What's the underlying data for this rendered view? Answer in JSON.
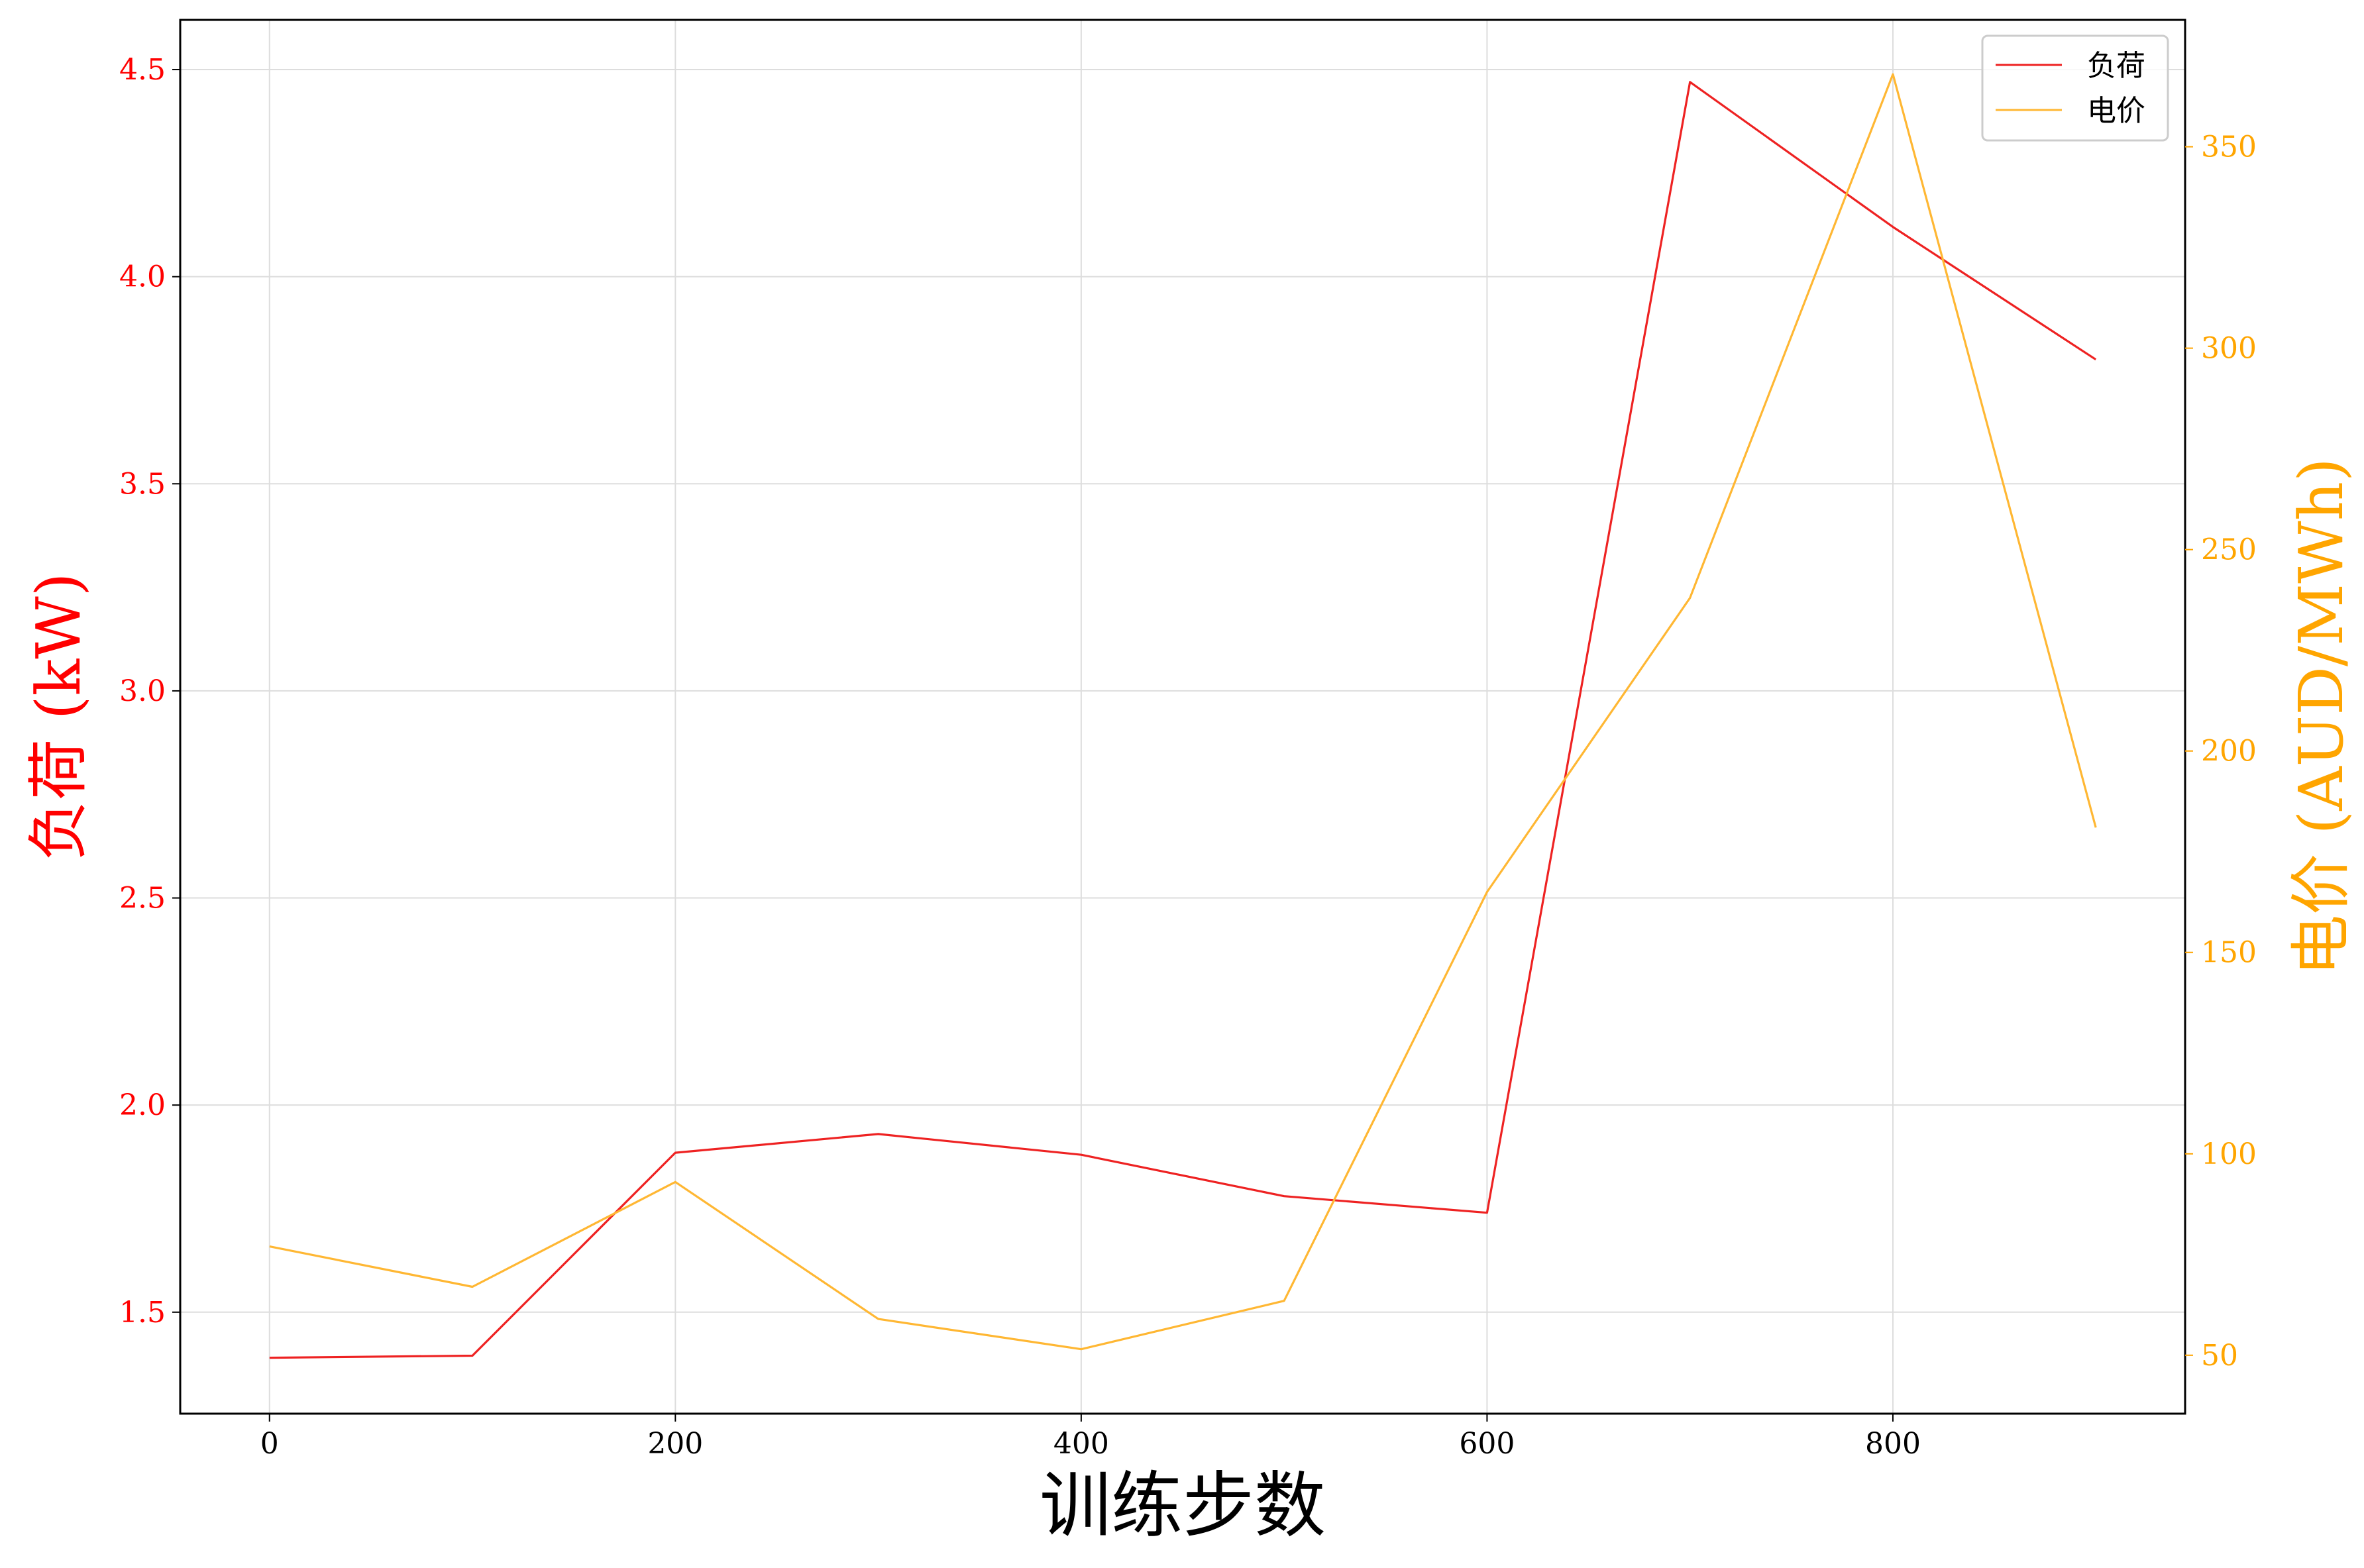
{
  "chart_data": {
    "type": "line",
    "title": "",
    "xlabel": "训练步数",
    "x": [
      0,
      100,
      200,
      300,
      400,
      500,
      600,
      700,
      800,
      900
    ],
    "xlim": [
      -44,
      944
    ],
    "xticks": [
      0,
      200,
      400,
      600,
      800
    ],
    "y_left": {
      "label": "负荷 (kW)",
      "color": "#ff0000",
      "lim": [
        1.255,
        4.62
      ],
      "ticks": [
        "1.5",
        "2.0",
        "2.5",
        "3.0",
        "3.5",
        "4.0",
        "4.5"
      ]
    },
    "y_right": {
      "label": "电价 (AUD/MWh)",
      "color": "#ffa500",
      "lim": [
        35.5,
        381.5
      ],
      "ticks": [
        "50",
        "100",
        "150",
        "200",
        "250",
        "300",
        "350"
      ]
    },
    "series": [
      {
        "name": "负荷",
        "axis": "left",
        "color": "#ee2222",
        "values": [
          1.39,
          1.395,
          1.885,
          1.93,
          1.88,
          1.78,
          1.74,
          4.47,
          4.12,
          3.8
        ]
      },
      {
        "name": "电价",
        "axis": "right",
        "color": "#ffb733",
        "values": [
          77,
          67,
          93,
          59,
          51.5,
          63.5,
          165,
          238,
          368,
          181
        ]
      }
    ],
    "grid": true,
    "legend_position": "top-right"
  }
}
